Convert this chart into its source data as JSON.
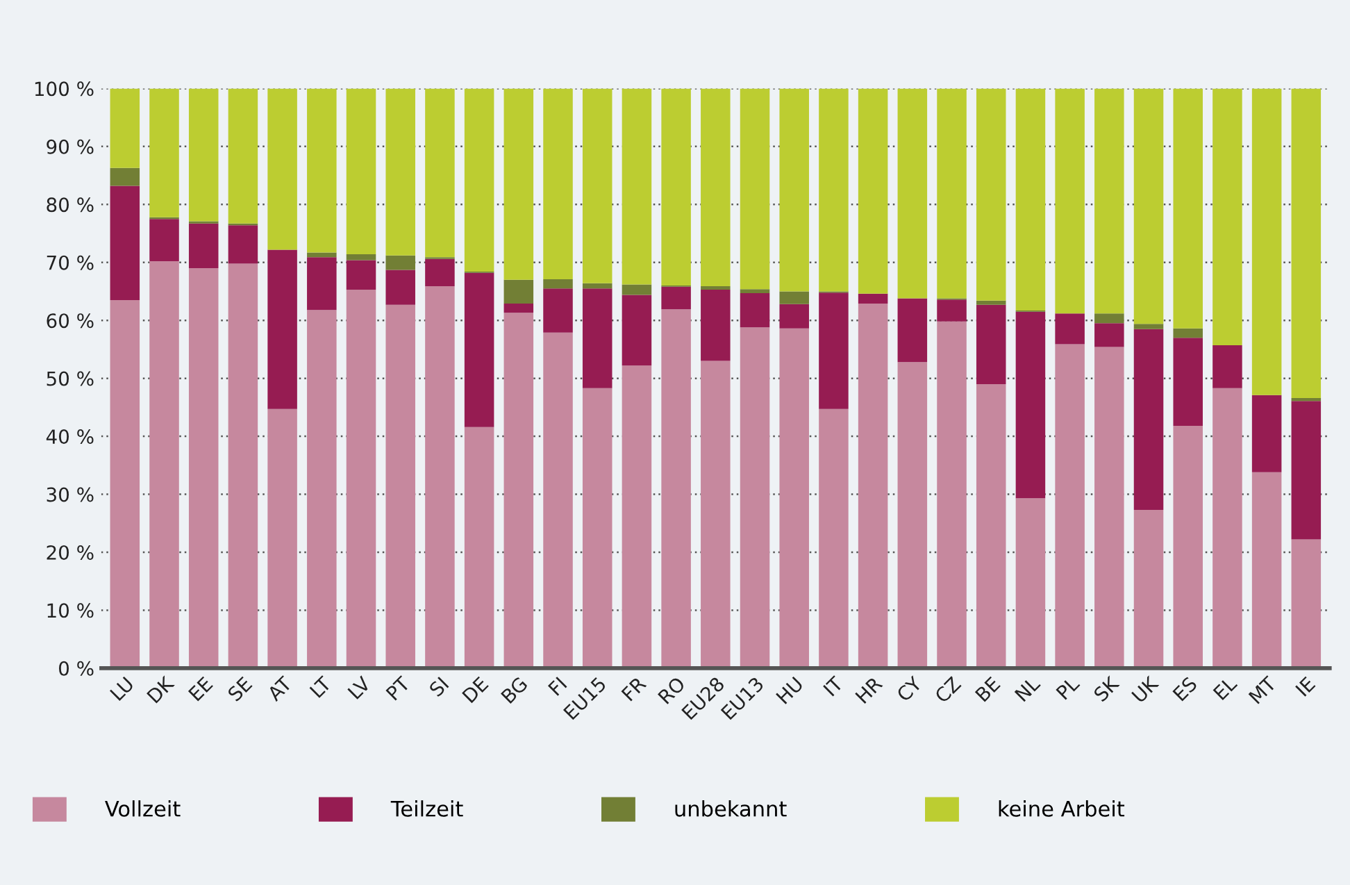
{
  "chart_data": {
    "type": "bar",
    "stacked": true,
    "categories": [
      "LU",
      "DK",
      "EE",
      "SE",
      "AT",
      "LT",
      "LV",
      "PT",
      "SI",
      "DE",
      "BG",
      "FI",
      "EU15",
      "FR",
      "RO",
      "EU28",
      "EU13",
      "HU",
      "IT",
      "HR",
      "CY",
      "CZ",
      "BE",
      "NL",
      "PL",
      "SK",
      "UK",
      "ES",
      "EL",
      "MT",
      "IE"
    ],
    "series": [
      {
        "name": "Vollzeit",
        "color": "#c6889e",
        "values": [
          63.5,
          70.2,
          69.0,
          69.8,
          44.7,
          61.8,
          65.3,
          62.7,
          65.9,
          41.6,
          61.3,
          57.9,
          48.3,
          52.2,
          61.9,
          53.0,
          58.8,
          58.6,
          44.7,
          62.9,
          52.8,
          59.8,
          49.0,
          29.3,
          55.9,
          55.4,
          27.3,
          41.8,
          48.3,
          33.8,
          22.2
        ]
      },
      {
        "name": "Teilzeit",
        "color": "#961c52",
        "values": [
          19.7,
          7.3,
          7.7,
          6.6,
          27.5,
          9.1,
          5.1,
          6.0,
          4.7,
          26.6,
          1.6,
          7.6,
          17.2,
          12.2,
          3.9,
          12.3,
          5.9,
          4.2,
          20.1,
          1.7,
          11.0,
          3.8,
          13.7,
          32.2,
          5.3,
          4.1,
          31.2,
          15.2,
          7.4,
          13.3,
          23.9
        ]
      },
      {
        "name": "unbekannt",
        "color": "#727f35",
        "values": [
          3.1,
          0.3,
          0.4,
          0.3,
          0.0,
          0.8,
          1.0,
          2.5,
          0.3,
          0.2,
          4.1,
          1.6,
          0.9,
          1.8,
          0.2,
          0.6,
          0.7,
          2.2,
          0.2,
          0.0,
          0.0,
          0.2,
          0.7,
          0.2,
          0.0,
          1.7,
          0.9,
          1.6,
          0.0,
          0.0,
          0.5
        ]
      },
      {
        "name": "keine Arbeit",
        "color": "#bccd31",
        "values": [
          13.7,
          22.2,
          22.9,
          23.3,
          27.8,
          28.3,
          28.6,
          28.8,
          29.1,
          31.6,
          33.0,
          32.9,
          33.6,
          33.8,
          34.0,
          34.1,
          34.6,
          35.0,
          35.0,
          35.4,
          36.2,
          36.2,
          36.6,
          38.3,
          38.8,
          38.8,
          40.6,
          41.4,
          44.3,
          52.9,
          53.4
        ]
      }
    ],
    "ylim": [
      0,
      100
    ],
    "yticks": [
      {
        "value": 0,
        "label": "0 %"
      },
      {
        "value": 10,
        "label": "10 %"
      },
      {
        "value": 20,
        "label": "20 %"
      },
      {
        "value": 30,
        "label": "30 %"
      },
      {
        "value": 40,
        "label": "40 %"
      },
      {
        "value": 50,
        "label": "50 %"
      },
      {
        "value": 60,
        "label": "60 %"
      },
      {
        "value": 70,
        "label": "70 %"
      },
      {
        "value": 80,
        "label": "80 %"
      },
      {
        "value": 90,
        "label": "90 %"
      },
      {
        "value": 100,
        "label": "100 %"
      }
    ],
    "grid": "y",
    "legend": "bottom"
  }
}
